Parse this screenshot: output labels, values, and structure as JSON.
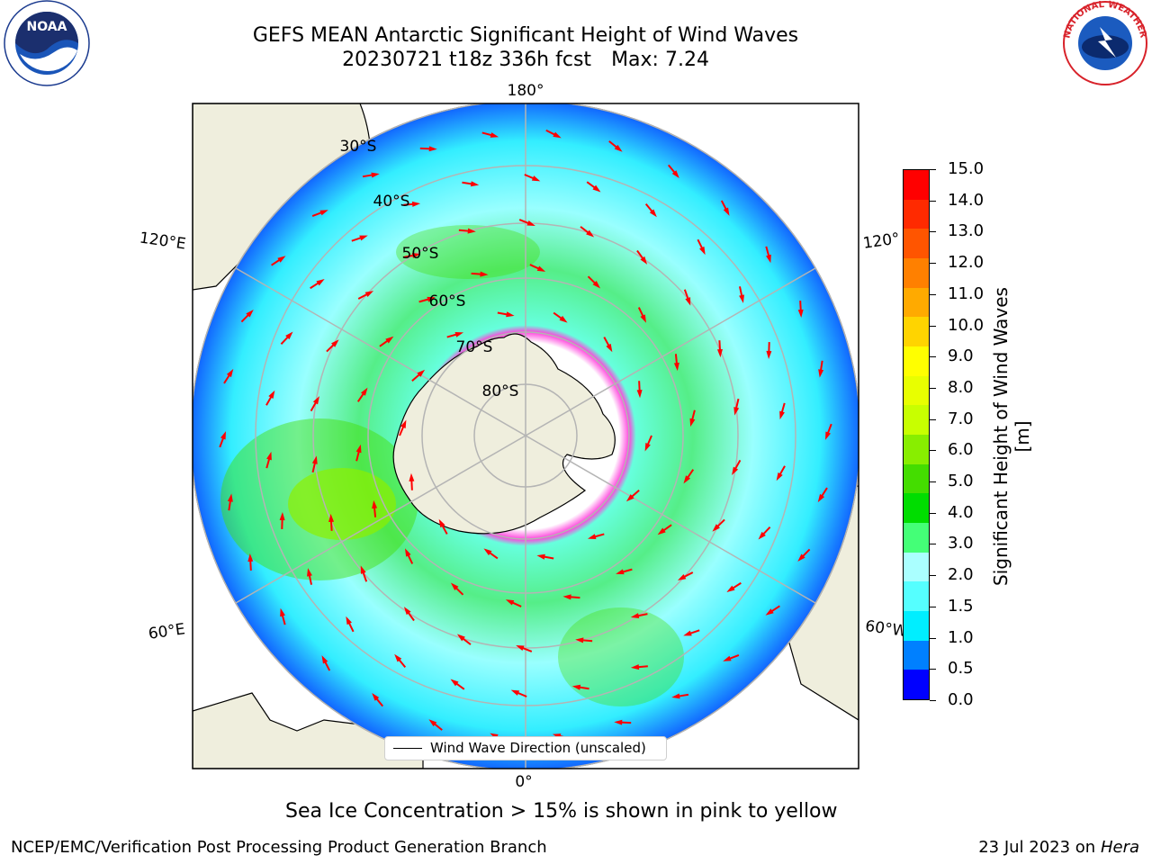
{
  "title": {
    "line1": "GEFS MEAN Antarctic Significant Height of Wind Waves",
    "line2_left": "20230721 t18z 336h fcst",
    "line2_right": "Max: 7.24"
  },
  "map": {
    "projection": "south-polar-stereographic",
    "longitude_labels": [
      "180°",
      "120°E",
      "120°",
      "60°E",
      "60°W",
      "0°"
    ],
    "latitude_labels": [
      "30°S",
      "40°S",
      "50°S",
      "60°S",
      "70°S",
      "80°S"
    ],
    "legend_label": "Wind Wave Direction (unscaled)",
    "colors": {
      "land": "#efeedd",
      "coastline": "#000000",
      "gridline": "#b4b4b4",
      "arrow": "#ff0000",
      "sea_ice_edge": "#ff44dd"
    }
  },
  "colorbar": {
    "title": "Significant Height of Wind Waves [m]",
    "tick_labels": [
      "15.0",
      "14.0",
      "13.0",
      "12.0",
      "11.0",
      "10.0",
      "9.0",
      "8.0",
      "7.0",
      "6.0",
      "5.0",
      "4.0",
      "3.0",
      "2.0",
      "1.5",
      "1.0",
      "0.5",
      "0.0"
    ],
    "colors": [
      "#ff0000",
      "#ff2a00",
      "#ff5500",
      "#ff8000",
      "#ffaa00",
      "#ffd400",
      "#ffff00",
      "#e8ff00",
      "#c8ff00",
      "#88ee00",
      "#44dd00",
      "#00dd00",
      "#44ff77",
      "#aaffff",
      "#55ffff",
      "#00eeff",
      "#0080ff",
      "#0000ff"
    ],
    "max": 7.24
  },
  "note": "Sea Ice Concentration > 15% is shown in pink to yellow",
  "footer": {
    "left": "NCEP/EMC/Verification Post Processing Product Generation Branch",
    "right_date": "23 Jul 2023 on ",
    "right_host": "Hera"
  },
  "logos": {
    "left": "NOAA",
    "right": "NATIONAL WEATHER SERVICE"
  }
}
